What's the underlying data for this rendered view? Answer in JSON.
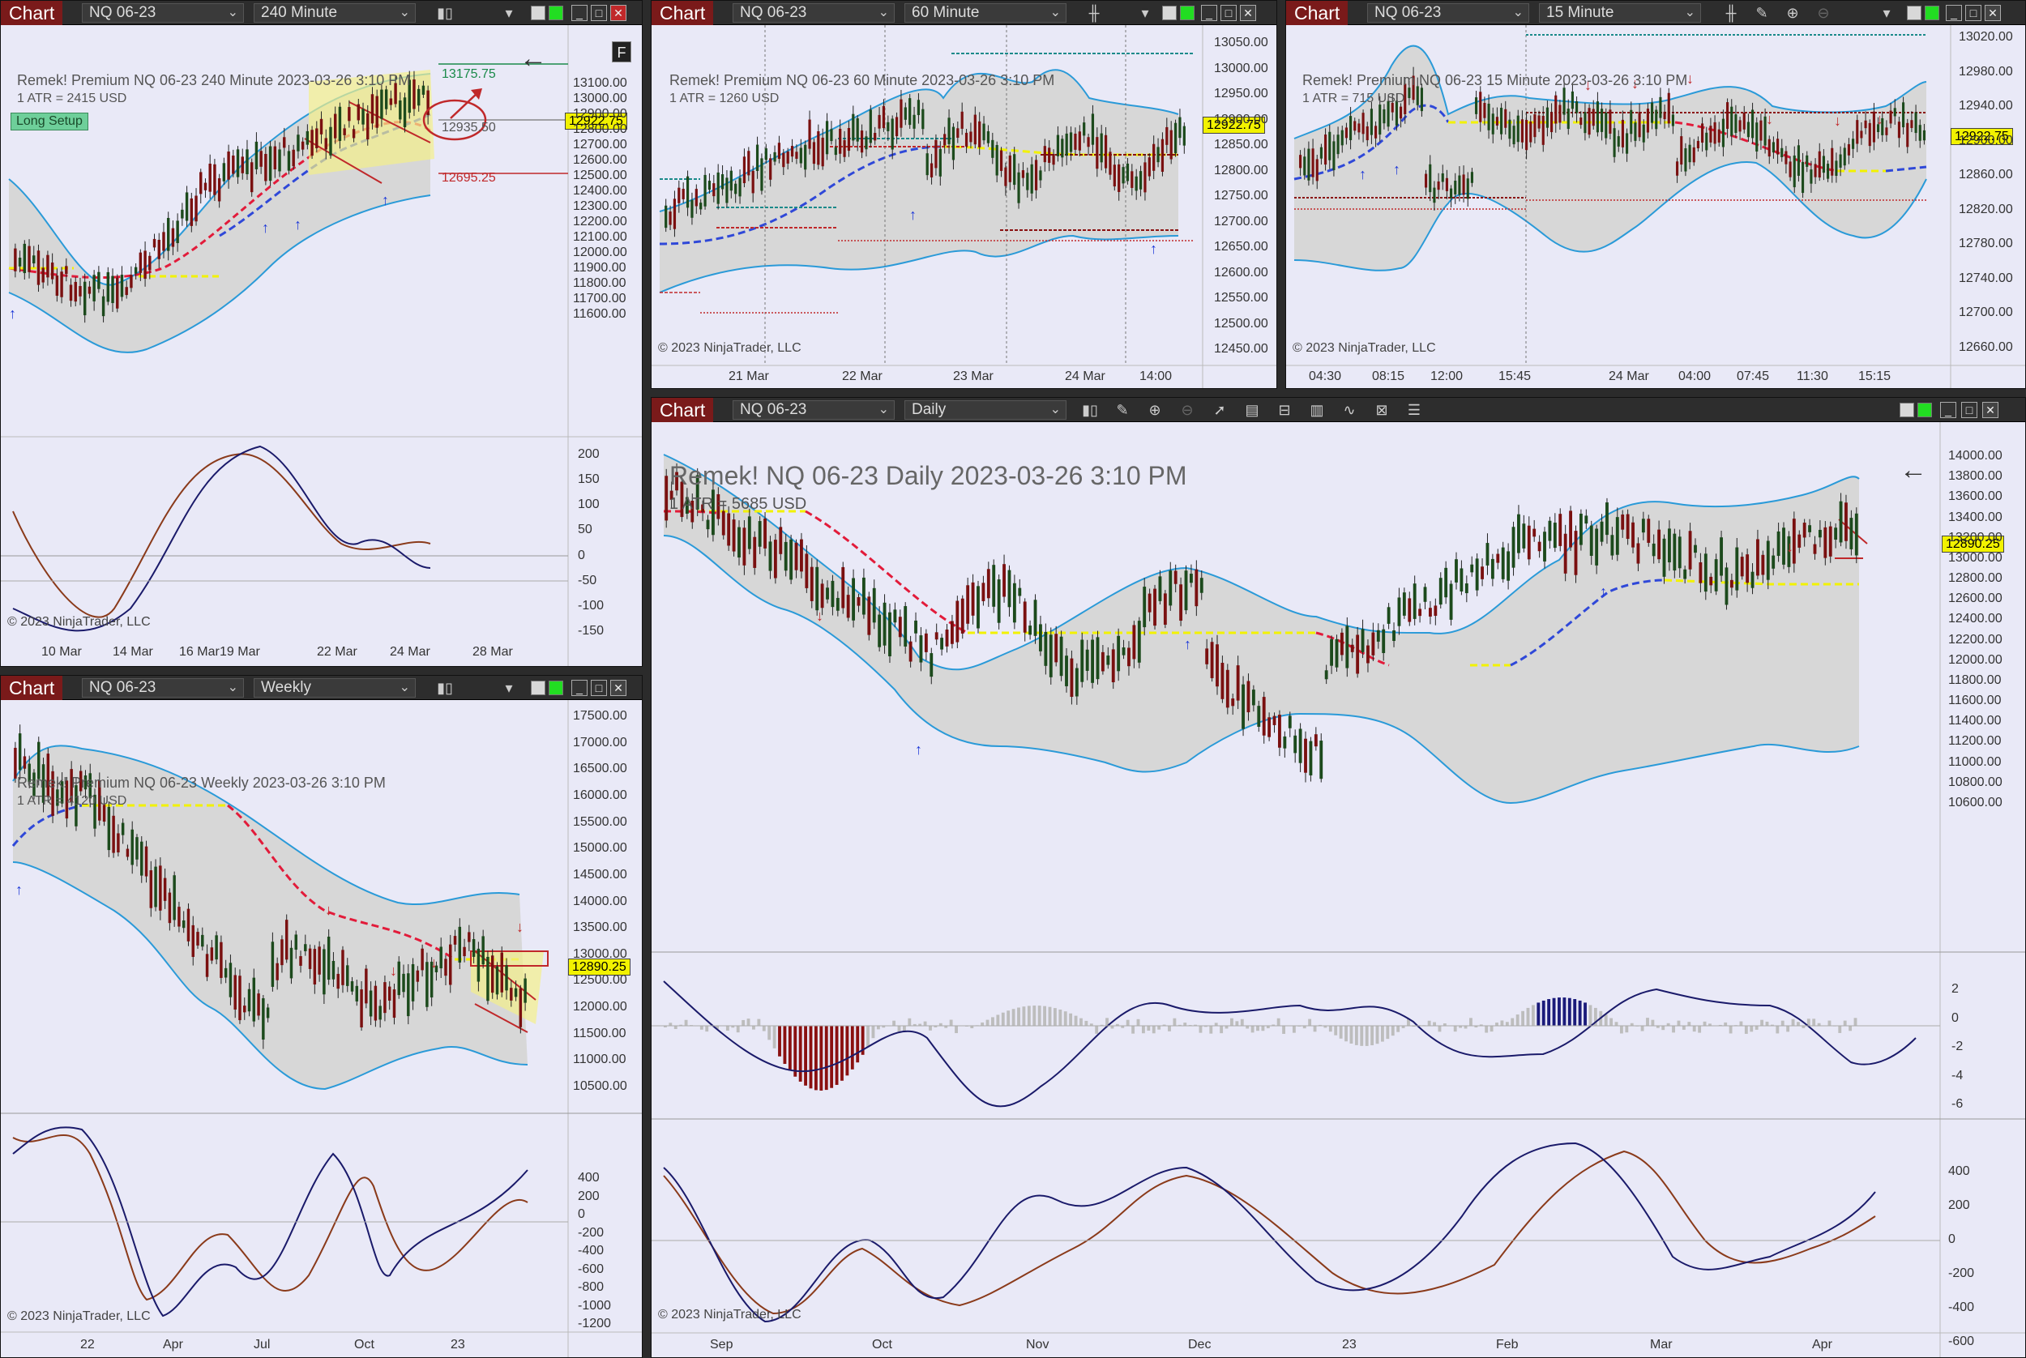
{
  "windows": {
    "w240": {
      "chart_label": "Chart",
      "instrument": "NQ 06-23",
      "interval": "240 Minute",
      "header": "Remek!  Premium  NQ 06-23  240 Minute  2023-03-26 3:10 PM",
      "atr": "1 ATR = 2415 USD",
      "setup_label": "Long Setup",
      "price": "12922.75",
      "tp": "13175.75",
      "mid": "12935.50",
      "stop": "12695.25",
      "copyright": "© 2023 NinjaTrader, LLC",
      "price_ticks": [
        "13100.00",
        "13000.00",
        "12900.00",
        "12800.00",
        "12700.00",
        "12600.00",
        "12500.00",
        "12400.00",
        "12300.00",
        "12200.00",
        "12100.00",
        "12000.00",
        "11900.00",
        "11800.00",
        "11700.00",
        "11600.00"
      ],
      "osc_ticks": [
        "200",
        "150",
        "100",
        "50",
        "0",
        "-50",
        "-100",
        "-150"
      ],
      "dates": [
        "10 Mar",
        "14 Mar",
        "16 Mar",
        "19 Mar",
        "22 Mar",
        "24 Mar",
        "28 Mar"
      ],
      "f_label": "F"
    },
    "w60": {
      "chart_label": "Chart",
      "instrument": "NQ 06-23",
      "interval": "60 Minute",
      "header": "Remek!  Premium  NQ 06-23  60 Minute  2023-03-26 3:10 PM",
      "atr": "1 ATR = 1260 USD",
      "price": "12922.75",
      "copyright": "© 2023 NinjaTrader, LLC",
      "price_ticks": [
        "13050.00",
        "13000.00",
        "12950.00",
        "12900.00",
        "12850.00",
        "12800.00",
        "12750.00",
        "12700.00",
        "12650.00",
        "12600.00",
        "12550.00",
        "12500.00",
        "12450.00"
      ],
      "dates": [
        "21 Mar",
        "22 Mar",
        "23 Mar",
        "24 Mar",
        "14:00"
      ]
    },
    "w15": {
      "chart_label": "Chart",
      "instrument": "NQ 06-23",
      "interval": "15 Minute",
      "header": "Remek!  Premium  NQ 06-23  15 Minute  2023-03-26 3:10 PM",
      "atr": "1 ATR = 715 USD",
      "price": "12922.75",
      "copyright": "© 2023 NinjaTrader, LLC",
      "price_ticks": [
        "13020.00",
        "12980.00",
        "12940.00",
        "12900.00",
        "12860.00",
        "12820.00",
        "12780.00",
        "12740.00",
        "12700.00",
        "12660.00"
      ],
      "dates": [
        "04:30",
        "08:15",
        "12:00",
        "15:45",
        "24 Mar",
        "04:00",
        "07:45",
        "11:30",
        "15:15"
      ]
    },
    "wweekly": {
      "chart_label": "Chart",
      "instrument": "NQ 06-23",
      "interval": "Weekly",
      "header": "Remek!  Premium  NQ 06-23  Weekly  2023-03-26 3:10 PM",
      "atr": "1 ATR = 4120 USD",
      "price": "12890.25",
      "copyright": "© 2023 NinjaTrader, LLC",
      "price_ticks": [
        "17500.00",
        "17000.00",
        "16500.00",
        "16000.00",
        "15500.00",
        "15000.00",
        "14500.00",
        "14000.00",
        "13500.00",
        "13000.00",
        "12500.00",
        "12000.00",
        "11500.00",
        "11000.00",
        "10500.00"
      ],
      "osc_ticks": [
        "400",
        "200",
        "0",
        "-200",
        "-400",
        "-600",
        "-800",
        "-1000",
        "-1200"
      ],
      "dates": [
        "22",
        "Apr",
        "Jul",
        "Oct",
        "23"
      ]
    },
    "wdaily": {
      "chart_label": "Chart",
      "instrument": "NQ 06-23",
      "interval": "Daily",
      "header": "Remek!  NQ 06-23  Daily  2023-03-26 3:10 PM",
      "atr": "1 ATR = 5685 USD",
      "price": "12890.25",
      "copyright": "© 2023 NinjaTrader, LLC",
      "price_ticks": [
        "14000.00",
        "13800.00",
        "13600.00",
        "13400.00",
        "13200.00",
        "13000.00",
        "12800.00",
        "12600.00",
        "12400.00",
        "12200.00",
        "12000.00",
        "11800.00",
        "11600.00",
        "11400.00",
        "11200.00",
        "11000.00",
        "10800.00",
        "10600.00"
      ],
      "hist_ticks": [
        "2",
        "0",
        "-2",
        "-4",
        "-6"
      ],
      "osc_ticks": [
        "400",
        "200",
        "0",
        "-200",
        "-400",
        "-600"
      ],
      "dates": [
        "Sep",
        "Oct",
        "Nov",
        "Dec",
        "23",
        "Feb",
        "Mar",
        "Apr"
      ]
    }
  },
  "icons": {
    "bar_type": "candles-icon",
    "draw": "pencil-icon",
    "zoom": "zoom-in-icon",
    "zoom_out": "zoom-out-icon",
    "pointer": "cursor-icon",
    "data_box": "data-box-icon",
    "templates": "template-icon",
    "strategies": "strategy-icon",
    "indicators": "indicator-icon",
    "properties": "properties-icon",
    "list": "list-icon"
  },
  "colors": {
    "plot_bg": "#e9e9f7",
    "band_fill": "#d7d7d7",
    "band_line": "#2a9ad8",
    "bull": "#1a3a1a",
    "bear": "#7a1010",
    "signal_up": "#1f3ad8",
    "signal_down": "#c0282a",
    "price_tag": "#f2f200"
  }
}
